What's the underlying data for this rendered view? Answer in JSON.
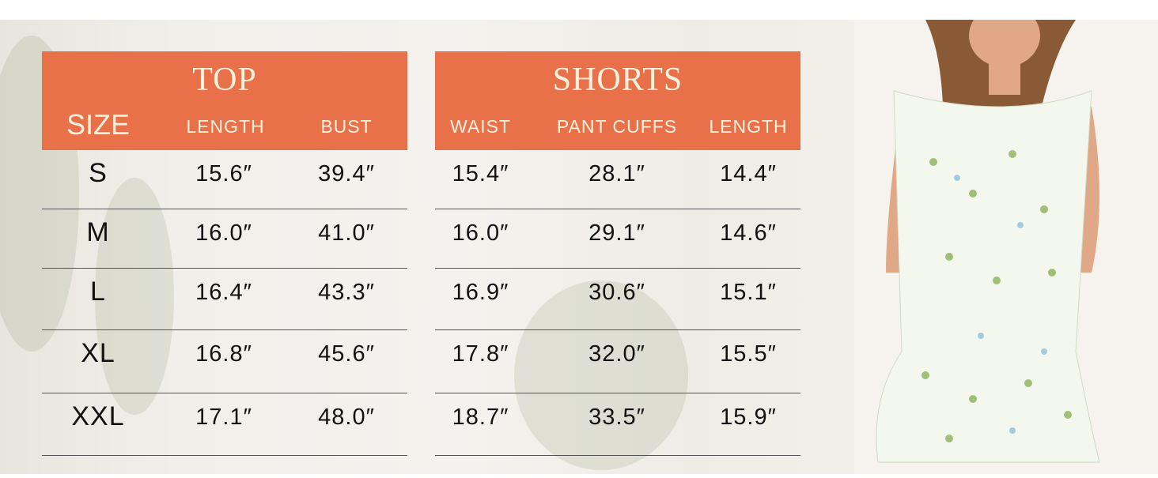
{
  "top": {
    "title": "TOP",
    "columns": [
      "SIZE",
      "LENGTH",
      "BUST"
    ],
    "rows": [
      [
        "S",
        "15.6″",
        "39.4″"
      ],
      [
        "M",
        "16.0″",
        "41.0″"
      ],
      [
        "L",
        "16.4″",
        "43.3″"
      ],
      [
        "XL",
        "16.8″",
        "45.6″"
      ],
      [
        "XXL",
        "17.1″",
        "48.0″"
      ]
    ]
  },
  "shorts": {
    "title": "SHORTS",
    "columns": [
      "WAIST",
      "PANT CUFFS",
      "LENGTH"
    ],
    "rows": [
      [
        "15.4″",
        "28.1″",
        "14.4″"
      ],
      [
        "16.0″",
        "29.1″",
        "14.6″"
      ],
      [
        "16.9″",
        "30.6″",
        "15.1″"
      ],
      [
        "17.8″",
        "32.0″",
        "15.5″"
      ],
      [
        "18.7″",
        "33.5″",
        "15.9″"
      ]
    ]
  },
  "colors": {
    "header": "#e8714a",
    "header_text": "#fdf1de"
  }
}
